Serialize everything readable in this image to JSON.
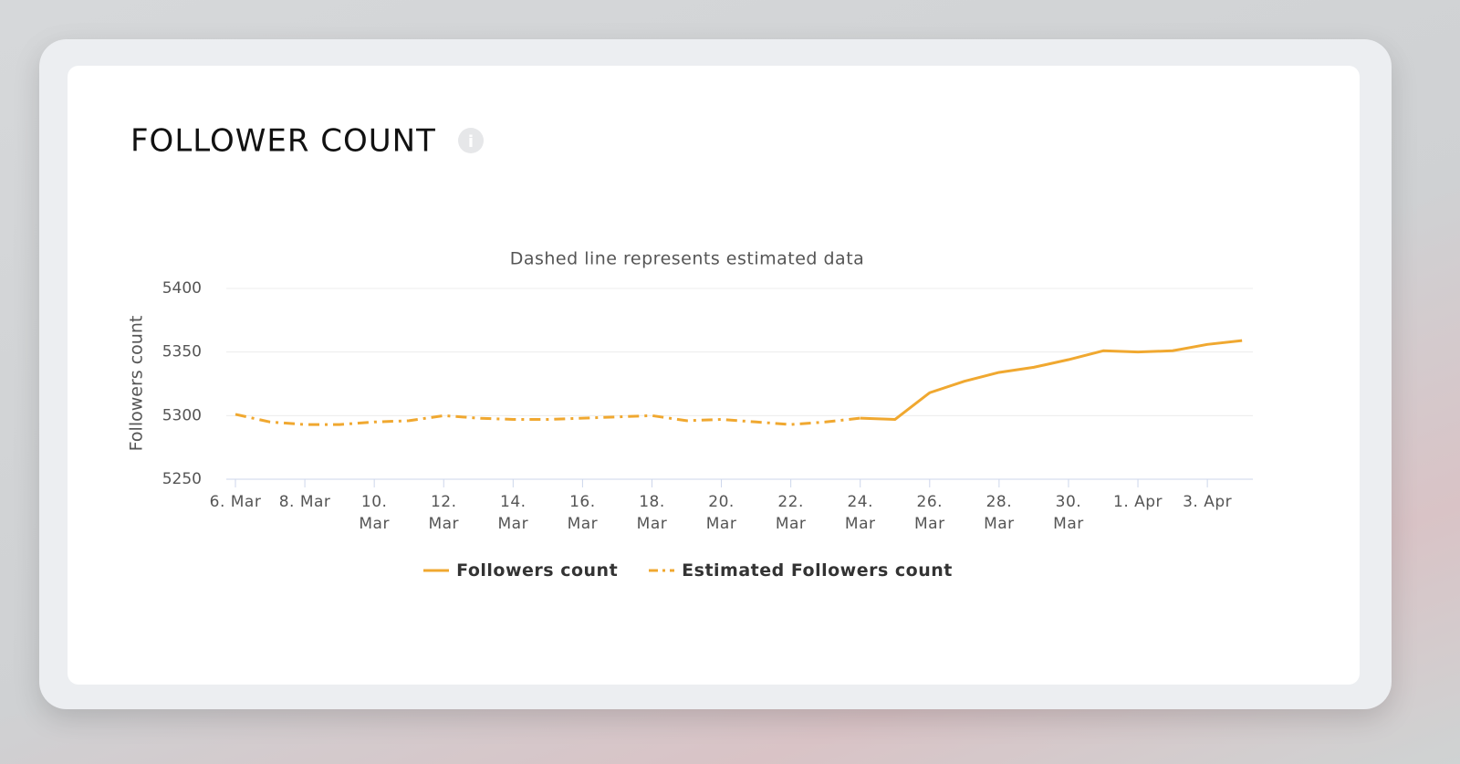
{
  "chart_data": {
    "type": "line",
    "title": "FOLLOWER COUNT",
    "subtitle": "Dashed line represents estimated data",
    "y_label": "Followers count",
    "categories": [
      "6. Mar",
      null,
      "8. Mar",
      null,
      "10. Mar",
      null,
      "12. Mar",
      null,
      "14. Mar",
      null,
      "16. Mar",
      null,
      "18. Mar",
      null,
      "20. Mar",
      null,
      "22. Mar",
      null,
      "24. Mar",
      null,
      "26. Mar",
      null,
      "28. Mar",
      null,
      "30. Mar",
      null,
      "1. Apr",
      null,
      "3. Apr",
      null
    ],
    "series": [
      {
        "name": "Followers count",
        "color": "#f0a830",
        "dash": "solid",
        "values": [
          null,
          null,
          null,
          null,
          null,
          null,
          null,
          null,
          null,
          null,
          null,
          null,
          null,
          null,
          null,
          null,
          null,
          null,
          5298,
          5297,
          5318,
          5327,
          5334,
          5338,
          5344,
          5351,
          5350,
          5351,
          5356,
          5359
        ]
      },
      {
        "name": "Estimated Followers count",
        "color": "#f0a830",
        "dash": "dashdot",
        "values": [
          5301,
          5295,
          5293,
          5293,
          5295,
          5296,
          5300,
          5298,
          5297,
          5297,
          5298,
          5299,
          5300,
          5296,
          5297,
          5295,
          5293,
          5295,
          5298,
          null,
          null,
          null,
          null,
          null,
          null,
          null,
          null,
          null,
          null,
          null
        ]
      }
    ],
    "ylim": [
      5250,
      5400
    ],
    "yticks": [
      5250,
      5300,
      5350,
      5400
    ],
    "grid": true,
    "legend": "bottom"
  }
}
